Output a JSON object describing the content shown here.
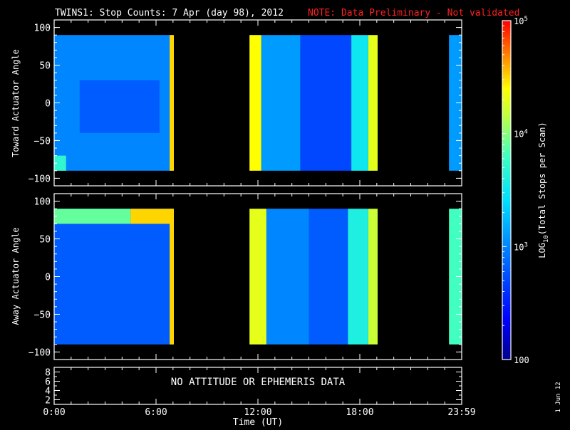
{
  "header": {
    "title": "TWINS1: Stop Counts:  7 Apr (day  98), 2012",
    "note": "NOTE: Data Preliminary - Not validated",
    "note_color": "#ff2020"
  },
  "footer": {
    "date_stamp": "1 Jun 12"
  },
  "chart_data": [
    {
      "type": "heatmap",
      "ylabel": "Toward Actuator Angle",
      "ylim": [
        -110,
        110
      ],
      "yticks": [
        "100",
        "50",
        "0",
        "−50",
        "−100"
      ],
      "ytick_values": [
        100,
        50,
        0,
        -50,
        -100
      ],
      "xlim": [
        0,
        24
      ],
      "data_y_range": [
        -90,
        90
      ],
      "data_gaps": [
        [
          7.05,
          11.5
        ],
        [
          19.05,
          23.25
        ]
      ],
      "background_level": 2.95,
      "features": [
        {
          "t": [
            0,
            7
          ],
          "y": [
            -90,
            90
          ],
          "log_value": 3.0
        },
        {
          "t": [
            1.5,
            6.2
          ],
          "y": [
            -40,
            30
          ],
          "log_value": 2.8
        },
        {
          "t": [
            0,
            0.7
          ],
          "y": [
            -90,
            -70
          ],
          "log_value": 3.7
        },
        {
          "t": [
            6.8,
            7.05
          ],
          "y": [
            -90,
            90
          ],
          "log_value": 4.5
        },
        {
          "t": [
            11.5,
            12.2
          ],
          "y": [
            -90,
            90
          ],
          "log_value": 4.4
        },
        {
          "t": [
            12.2,
            14.5
          ],
          "y": [
            -90,
            90
          ],
          "log_value": 3.1
        },
        {
          "t": [
            14.5,
            17.5
          ],
          "y": [
            -90,
            90
          ],
          "log_value": 2.7
        },
        {
          "t": [
            17.5,
            18.5
          ],
          "y": [
            -90,
            90
          ],
          "log_value": 3.5
        },
        {
          "t": [
            18.5,
            19.05
          ],
          "y": [
            -90,
            90
          ],
          "log_value": 4.3
        },
        {
          "t": [
            23.25,
            24
          ],
          "y": [
            -90,
            90
          ],
          "log_value": 3.1
        }
      ]
    },
    {
      "type": "heatmap",
      "ylabel": "Away Actuator Angle",
      "ylim": [
        -110,
        110
      ],
      "yticks": [
        "100",
        "50",
        "0",
        "−50",
        "−100"
      ],
      "ytick_values": [
        100,
        50,
        0,
        -50,
        -100
      ],
      "xlim": [
        0,
        24
      ],
      "data_y_range": [
        -90,
        90
      ],
      "data_gaps": [
        [
          7.05,
          11.5
        ],
        [
          19.05,
          23.25
        ]
      ],
      "background_level": 2.8,
      "features": [
        {
          "t": [
            0,
            7
          ],
          "y": [
            -90,
            90
          ],
          "log_value": 2.8
        },
        {
          "t": [
            0,
            4.5
          ],
          "y": [
            70,
            90
          ],
          "log_value": 3.9
        },
        {
          "t": [
            4.5,
            7
          ],
          "y": [
            70,
            90
          ],
          "log_value": 4.5
        },
        {
          "t": [
            6.8,
            7.05
          ],
          "y": [
            -90,
            90
          ],
          "log_value": 4.5
        },
        {
          "t": [
            11.5,
            12.5
          ],
          "y": [
            -90,
            90
          ],
          "log_value": 4.3
        },
        {
          "t": [
            12.5,
            15
          ],
          "y": [
            -90,
            90
          ],
          "log_value": 3.0
        },
        {
          "t": [
            15,
            17.3
          ],
          "y": [
            -90,
            90
          ],
          "log_value": 2.8
        },
        {
          "t": [
            17.3,
            18.5
          ],
          "y": [
            -90,
            90
          ],
          "log_value": 3.6
        },
        {
          "t": [
            18.5,
            19.05
          ],
          "y": [
            -90,
            90
          ],
          "log_value": 4.2
        },
        {
          "t": [
            23.25,
            24
          ],
          "y": [
            -90,
            90
          ],
          "log_value": 3.8
        }
      ]
    },
    {
      "type": "line",
      "ylim": [
        1,
        9
      ],
      "yticks": [
        "8",
        "6",
        "4",
        "2"
      ],
      "ytick_values": [
        8,
        6,
        4,
        2
      ],
      "message": "NO ATTITUDE OR EPHEMERIS DATA",
      "xlabel": "Time (UT)",
      "xticks": [
        "0:00",
        "6:00",
        "12:00",
        "18:00",
        "23:59"
      ],
      "xtick_values": [
        0,
        6,
        12,
        18,
        24
      ]
    }
  ],
  "colorbar": {
    "label_prefix": "LOG",
    "label_sub": "10",
    "label_suffix": "(Total Stops per Scan)",
    "ticks": [
      {
        "log": 5,
        "base": "10",
        "exp": "5"
      },
      {
        "log": 4,
        "base": "10",
        "exp": "4"
      },
      {
        "log": 3,
        "base": "10",
        "exp": "3"
      },
      {
        "log": 2,
        "base": "100",
        "exp": ""
      }
    ],
    "range": [
      2,
      5
    ]
  },
  "colors": {
    "background": "#000000",
    "axis": "#ffffff"
  }
}
